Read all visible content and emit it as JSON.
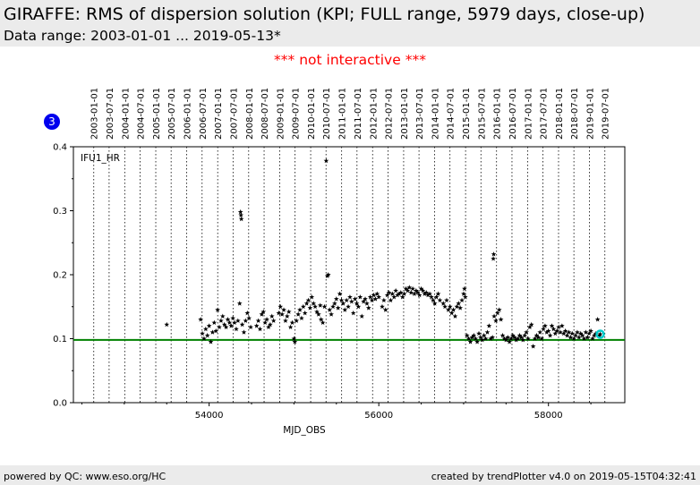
{
  "header": {
    "title": "GIRAFFE: RMS of dispersion solution (KPI; FULL range, 5979 days, close-up)",
    "subtitle": "Data range: 2003-01-01 ... 2019-05-13*"
  },
  "notice": "*** not interactive ***",
  "badge": "3",
  "footer": {
    "left": "powered by QC: www.eso.org/HC",
    "right": "created by trendPlotter v4.0 on 2019-05-15T04:32:41"
  },
  "colors": {
    "threshold_line": "#008000",
    "marker": "#000000",
    "latest_highlight": "#00cccc",
    "notice": "#ff0000",
    "badge": "#0000ee"
  },
  "chart_data": {
    "type": "scatter",
    "xlabel": "MJD_OBS",
    "ylabel": "",
    "xlim": [
      52400,
      58900
    ],
    "ylim": [
      0.0,
      0.4
    ],
    "x_ticks": [
      54000,
      56000,
      58000
    ],
    "x_ticklabels": [
      "54000",
      "56000",
      "58000"
    ],
    "y_ticks": [
      0.0,
      0.1,
      0.2,
      0.3,
      0.4
    ],
    "y_ticklabels": [
      "0.0",
      "0.1",
      "0.2",
      "0.3",
      "0.4"
    ],
    "grid": false,
    "panel_label": "IFU1_HR",
    "threshold": 0.098,
    "date_markers": [
      {
        "label": "2003-01-01",
        "mjd": 52640
      },
      {
        "label": "2003-07-01",
        "mjd": 52821
      },
      {
        "label": "2004-01-01",
        "mjd": 53005
      },
      {
        "label": "2004-07-01",
        "mjd": 53187
      },
      {
        "label": "2005-01-01",
        "mjd": 53371
      },
      {
        "label": "2005-07-01",
        "mjd": 53552
      },
      {
        "label": "2006-01-01",
        "mjd": 53736
      },
      {
        "label": "2006-07-01",
        "mjd": 53917
      },
      {
        "label": "2007-01-01",
        "mjd": 54101
      },
      {
        "label": "2007-07-01",
        "mjd": 54282
      },
      {
        "label": "2008-01-01",
        "mjd": 54466
      },
      {
        "label": "2008-07-01",
        "mjd": 54648
      },
      {
        "label": "2009-01-01",
        "mjd": 54832
      },
      {
        "label": "2009-07-01",
        "mjd": 55013
      },
      {
        "label": "2010-01-01",
        "mjd": 55197
      },
      {
        "label": "2010-07-01",
        "mjd": 55378
      },
      {
        "label": "2011-01-01",
        "mjd": 55562
      },
      {
        "label": "2011-07-01",
        "mjd": 55743
      },
      {
        "label": "2012-01-01",
        "mjd": 55927
      },
      {
        "label": "2012-07-01",
        "mjd": 56109
      },
      {
        "label": "2013-01-01",
        "mjd": 56293
      },
      {
        "label": "2013-07-01",
        "mjd": 56474
      },
      {
        "label": "2014-01-01",
        "mjd": 56658
      },
      {
        "label": "2014-07-01",
        "mjd": 56839
      },
      {
        "label": "2015-01-01",
        "mjd": 57023
      },
      {
        "label": "2015-07-01",
        "mjd": 57204
      },
      {
        "label": "2016-01-01",
        "mjd": 57388
      },
      {
        "label": "2016-07-01",
        "mjd": 57570
      },
      {
        "label": "2017-01-01",
        "mjd": 57754
      },
      {
        "label": "2017-07-01",
        "mjd": 57935
      },
      {
        "label": "2018-01-01",
        "mjd": 58119
      },
      {
        "label": "2018-07-01",
        "mjd": 58300
      },
      {
        "label": "2019-01-01",
        "mjd": 58484
      },
      {
        "label": "2019-07-01",
        "mjd": 58665
      }
    ],
    "latest_point": {
      "x": 58610,
      "y": 0.107
    },
    "series": [
      {
        "marker": "star",
        "points": [
          [
            53500,
            0.122
          ],
          [
            53900,
            0.13
          ],
          [
            53920,
            0.108
          ],
          [
            53940,
            0.1
          ],
          [
            53960,
            0.115
          ],
          [
            53980,
            0.105
          ],
          [
            54000,
            0.12
          ],
          [
            54020,
            0.095
          ],
          [
            54040,
            0.11
          ],
          [
            54060,
            0.125
          ],
          [
            54080,
            0.112
          ],
          [
            54100,
            0.145
          ],
          [
            54120,
            0.118
          ],
          [
            54140,
            0.128
          ],
          [
            54160,
            0.135
          ],
          [
            54180,
            0.122
          ],
          [
            54200,
            0.118
          ],
          [
            54220,
            0.13
          ],
          [
            54240,
            0.125
          ],
          [
            54260,
            0.12
          ],
          [
            54280,
            0.132
          ],
          [
            54300,
            0.125
          ],
          [
            54320,
            0.115
          ],
          [
            54340,
            0.128
          ],
          [
            54360,
            0.155
          ],
          [
            54370,
            0.298
          ],
          [
            54375,
            0.293
          ],
          [
            54380,
            0.287
          ],
          [
            54390,
            0.122
          ],
          [
            54410,
            0.11
          ],
          [
            54430,
            0.128
          ],
          [
            54450,
            0.14
          ],
          [
            54470,
            0.132
          ],
          [
            54490,
            0.118
          ],
          [
            54560,
            0.12
          ],
          [
            54580,
            0.128
          ],
          [
            54600,
            0.115
          ],
          [
            54620,
            0.138
          ],
          [
            54640,
            0.142
          ],
          [
            54660,
            0.125
          ],
          [
            54680,
            0.13
          ],
          [
            54700,
            0.118
          ],
          [
            54720,
            0.122
          ],
          [
            54740,
            0.135
          ],
          [
            54760,
            0.128
          ],
          [
            54820,
            0.14
          ],
          [
            54840,
            0.15
          ],
          [
            54860,
            0.138
          ],
          [
            54880,
            0.145
          ],
          [
            54900,
            0.128
          ],
          [
            54920,
            0.135
          ],
          [
            54940,
            0.142
          ],
          [
            54960,
            0.118
          ],
          [
            54980,
            0.125
          ],
          [
            55000,
            0.1
          ],
          [
            55010,
            0.095
          ],
          [
            55030,
            0.128
          ],
          [
            55050,
            0.138
          ],
          [
            55070,
            0.145
          ],
          [
            55090,
            0.132
          ],
          [
            55110,
            0.15
          ],
          [
            55130,
            0.14
          ],
          [
            55150,
            0.155
          ],
          [
            55170,
            0.16
          ],
          [
            55190,
            0.148
          ],
          [
            55210,
            0.165
          ],
          [
            55230,
            0.155
          ],
          [
            55250,
            0.15
          ],
          [
            55270,
            0.142
          ],
          [
            55290,
            0.138
          ],
          [
            55310,
            0.152
          ],
          [
            55320,
            0.13
          ],
          [
            55340,
            0.125
          ],
          [
            55360,
            0.15
          ],
          [
            55380,
            0.378
          ],
          [
            55395,
            0.198
          ],
          [
            55405,
            0.2
          ],
          [
            55420,
            0.145
          ],
          [
            55440,
            0.138
          ],
          [
            55460,
            0.15
          ],
          [
            55480,
            0.155
          ],
          [
            55500,
            0.162
          ],
          [
            55520,
            0.148
          ],
          [
            55540,
            0.17
          ],
          [
            55560,
            0.16
          ],
          [
            55580,
            0.155
          ],
          [
            55600,
            0.145
          ],
          [
            55620,
            0.16
          ],
          [
            55640,
            0.15
          ],
          [
            55660,
            0.165
          ],
          [
            55680,
            0.158
          ],
          [
            55700,
            0.14
          ],
          [
            55720,
            0.162
          ],
          [
            55740,
            0.155
          ],
          [
            55760,
            0.15
          ],
          [
            55780,
            0.165
          ],
          [
            55800,
            0.135
          ],
          [
            55820,
            0.158
          ],
          [
            55840,
            0.162
          ],
          [
            55860,
            0.155
          ],
          [
            55880,
            0.148
          ],
          [
            55900,
            0.165
          ],
          [
            55920,
            0.16
          ],
          [
            55940,
            0.168
          ],
          [
            55960,
            0.162
          ],
          [
            55980,
            0.17
          ],
          [
            56000,
            0.165
          ],
          [
            56040,
            0.15
          ],
          [
            56060,
            0.16
          ],
          [
            56080,
            0.145
          ],
          [
            56100,
            0.168
          ],
          [
            56120,
            0.172
          ],
          [
            56140,
            0.16
          ],
          [
            56160,
            0.17
          ],
          [
            56180,
            0.165
          ],
          [
            56200,
            0.175
          ],
          [
            56220,
            0.168
          ],
          [
            56240,
            0.17
          ],
          [
            56260,
            0.172
          ],
          [
            56280,
            0.165
          ],
          [
            56300,
            0.17
          ],
          [
            56320,
            0.178
          ],
          [
            56340,
            0.175
          ],
          [
            56360,
            0.18
          ],
          [
            56380,
            0.172
          ],
          [
            56400,
            0.178
          ],
          [
            56420,
            0.17
          ],
          [
            56440,
            0.175
          ],
          [
            56460,
            0.172
          ],
          [
            56480,
            0.168
          ],
          [
            56500,
            0.178
          ],
          [
            56520,
            0.175
          ],
          [
            56540,
            0.17
          ],
          [
            56560,
            0.172
          ],
          [
            56580,
            0.168
          ],
          [
            56600,
            0.17
          ],
          [
            56620,
            0.165
          ],
          [
            56640,
            0.16
          ],
          [
            56660,
            0.155
          ],
          [
            56680,
            0.165
          ],
          [
            56700,
            0.17
          ],
          [
            56720,
            0.16
          ],
          [
            56760,
            0.155
          ],
          [
            56780,
            0.15
          ],
          [
            56800,
            0.16
          ],
          [
            56820,
            0.145
          ],
          [
            56840,
            0.15
          ],
          [
            56860,
            0.14
          ],
          [
            56880,
            0.145
          ],
          [
            56900,
            0.135
          ],
          [
            56920,
            0.15
          ],
          [
            56940,
            0.155
          ],
          [
            56960,
            0.148
          ],
          [
            56980,
            0.16
          ],
          [
            57000,
            0.17
          ],
          [
            57010,
            0.178
          ],
          [
            57020,
            0.165
          ],
          [
            57040,
            0.105
          ],
          [
            57060,
            0.1
          ],
          [
            57080,
            0.095
          ],
          [
            57100,
            0.102
          ],
          [
            57120,
            0.105
          ],
          [
            57140,
            0.1
          ],
          [
            57160,
            0.095
          ],
          [
            57180,
            0.108
          ],
          [
            57200,
            0.102
          ],
          [
            57220,
            0.098
          ],
          [
            57240,
            0.105
          ],
          [
            57260,
            0.1
          ],
          [
            57280,
            0.11
          ],
          [
            57300,
            0.12
          ],
          [
            57320,
            0.1
          ],
          [
            57340,
            0.102
          ],
          [
            57350,
            0.225
          ],
          [
            57355,
            0.232
          ],
          [
            57360,
            0.135
          ],
          [
            57380,
            0.128
          ],
          [
            57400,
            0.14
          ],
          [
            57420,
            0.145
          ],
          [
            57440,
            0.13
          ],
          [
            57460,
            0.105
          ],
          [
            57480,
            0.1
          ],
          [
            57500,
            0.098
          ],
          [
            57520,
            0.102
          ],
          [
            57540,
            0.095
          ],
          [
            57560,
            0.1
          ],
          [
            57580,
            0.105
          ],
          [
            57600,
            0.102
          ],
          [
            57620,
            0.098
          ],
          [
            57640,
            0.1
          ],
          [
            57660,
            0.105
          ],
          [
            57680,
            0.102
          ],
          [
            57700,
            0.098
          ],
          [
            57720,
            0.105
          ],
          [
            57740,
            0.11
          ],
          [
            57760,
            0.1
          ],
          [
            57780,
            0.118
          ],
          [
            57800,
            0.122
          ],
          [
            57820,
            0.088
          ],
          [
            57840,
            0.1
          ],
          [
            57860,
            0.105
          ],
          [
            57880,
            0.102
          ],
          [
            57900,
            0.11
          ],
          [
            57920,
            0.1
          ],
          [
            57940,
            0.115
          ],
          [
            57960,
            0.12
          ],
          [
            57980,
            0.11
          ],
          [
            58000,
            0.112
          ],
          [
            58020,
            0.105
          ],
          [
            58040,
            0.12
          ],
          [
            58060,
            0.115
          ],
          [
            58080,
            0.108
          ],
          [
            58100,
            0.112
          ],
          [
            58120,
            0.118
          ],
          [
            58140,
            0.11
          ],
          [
            58160,
            0.12
          ],
          [
            58180,
            0.108
          ],
          [
            58200,
            0.112
          ],
          [
            58220,
            0.105
          ],
          [
            58240,
            0.11
          ],
          [
            58260,
            0.102
          ],
          [
            58280,
            0.108
          ],
          [
            58300,
            0.1
          ],
          [
            58320,
            0.105
          ],
          [
            58340,
            0.11
          ],
          [
            58360,
            0.102
          ],
          [
            58380,
            0.108
          ],
          [
            58400,
            0.105
          ],
          [
            58420,
            0.1
          ],
          [
            58440,
            0.11
          ],
          [
            58460,
            0.102
          ],
          [
            58480,
            0.108
          ],
          [
            58500,
            0.112
          ],
          [
            58520,
            0.1
          ],
          [
            58540,
            0.105
          ],
          [
            58560,
            0.108
          ],
          [
            58580,
            0.13
          ],
          [
            58600,
            0.105
          ]
        ]
      }
    ]
  }
}
